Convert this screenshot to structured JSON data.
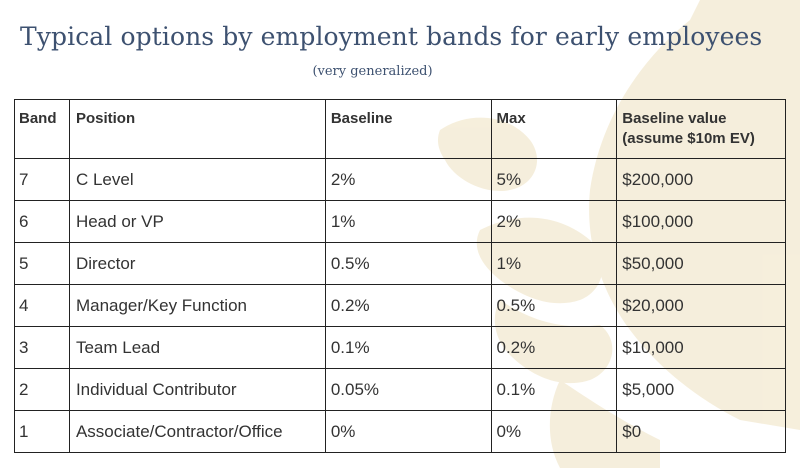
{
  "header": {
    "title": "Typical options by employment bands for early employees",
    "subtitle": "(very generalized)"
  },
  "table": {
    "columns": [
      "Band",
      "Position",
      "Baseline",
      "Max",
      "Baseline value (assume $10m EV)"
    ],
    "rows": [
      {
        "band": "7",
        "position": "C Level",
        "baseline": "2%",
        "max": "5%",
        "value": "$200,000"
      },
      {
        "band": "6",
        "position": "Head or VP",
        "baseline": "1%",
        "max": "2%",
        "value": "$100,000"
      },
      {
        "band": "5",
        "position": "Director",
        "baseline": "0.5%",
        "max": "1%",
        "value": "$50,000"
      },
      {
        "band": "4",
        "position": "Manager/Key Function",
        "baseline": "0.2%",
        "max": "0.5%",
        "value": "$20,000"
      },
      {
        "band": "3",
        "position": "Team Lead",
        "baseline": "0.1%",
        "max": "0.2%",
        "value": "$10,000"
      },
      {
        "band": "2",
        "position": "Individual Contributor",
        "baseline": "0.05%",
        "max": "0.1%",
        "value": "$5,000"
      },
      {
        "band": "1",
        "position": "Associate/Contractor/Office",
        "baseline": "0%",
        "max": "0%",
        "value": "$0"
      }
    ]
  },
  "colors": {
    "title": "#3d5170",
    "text": "#333333",
    "border": "#222222",
    "watermark": "#f3ead3"
  }
}
